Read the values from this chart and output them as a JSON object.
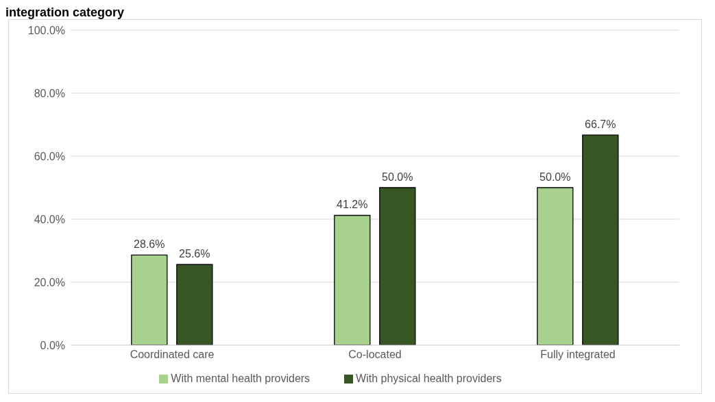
{
  "chart_data": {
    "type": "bar",
    "title": "integration category",
    "categories": [
      "Coordinated care",
      "Co-located",
      "Fully integrated"
    ],
    "series": [
      {
        "name": "With mental health providers",
        "color": "#a9d18e",
        "values": [
          28.6,
          41.2,
          50.0
        ],
        "value_labels": [
          "28.6%",
          "41.2%",
          "50.0%"
        ]
      },
      {
        "name": "With physical health providers",
        "color": "#375623",
        "values": [
          25.6,
          50.0,
          66.7
        ],
        "value_labels": [
          "25.6%",
          "50.0%",
          "66.7%"
        ]
      }
    ],
    "ylim": [
      0,
      100
    ],
    "yticks": [
      {
        "value": 0,
        "label": "0.0%"
      },
      {
        "value": 20,
        "label": "20.0%"
      },
      {
        "value": 40,
        "label": "40.0%"
      },
      {
        "value": 60,
        "label": "60.0%"
      },
      {
        "value": 80,
        "label": "80.0%"
      },
      {
        "value": 100,
        "label": "100.0%"
      }
    ],
    "grid": "y",
    "legend": "bottom"
  }
}
